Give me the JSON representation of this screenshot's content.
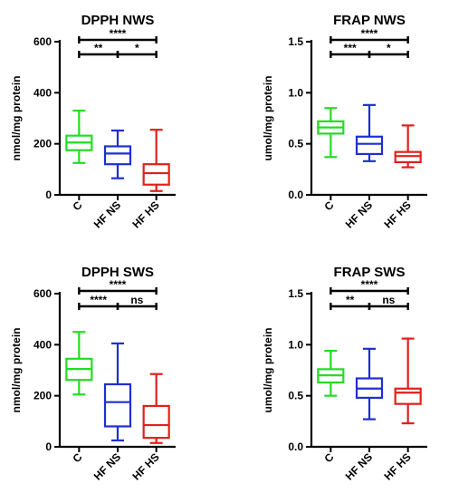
{
  "chart_data": [
    {
      "type": "boxplot",
      "title": "DPPH NWS",
      "ylabel": "nmol/mg protein",
      "ylim": [
        0,
        600
      ],
      "yticks": [
        0,
        200,
        400,
        600
      ],
      "categories": [
        "C",
        "HF NS",
        "HF HS"
      ],
      "boxes": [
        {
          "name": "C",
          "color": "#22dd22",
          "min": 125,
          "q1": 175,
          "median": 205,
          "q3": 232,
          "max": 330
        },
        {
          "name": "HF NS",
          "color": "#1f2fd0",
          "min": 65,
          "q1": 120,
          "median": 162,
          "q3": 190,
          "max": 252
        },
        {
          "name": "HF HS",
          "color": "#e0201c",
          "min": 15,
          "q1": 40,
          "median": 85,
          "q3": 120,
          "max": 255
        }
      ],
      "significance": [
        {
          "from": 0,
          "to": 2,
          "level": 0,
          "label": "****"
        },
        {
          "from": 0,
          "to": 1,
          "level": 1,
          "label": "**"
        },
        {
          "from": 1,
          "to": 2,
          "level": 1,
          "label": "*"
        }
      ]
    },
    {
      "type": "boxplot",
      "title": "FRAP NWS",
      "ylabel": "umol/mg protein",
      "ylim": [
        0,
        1.5
      ],
      "yticks": [
        "0.0",
        "0.5",
        "1.0",
        "1.5"
      ],
      "categories": [
        "C",
        "HF NS",
        "HF HS"
      ],
      "boxes": [
        {
          "name": "C",
          "color": "#22dd22",
          "min": 0.37,
          "q1": 0.6,
          "median": 0.66,
          "q3": 0.72,
          "max": 0.85
        },
        {
          "name": "HF NS",
          "color": "#1f2fd0",
          "min": 0.33,
          "q1": 0.4,
          "median": 0.5,
          "q3": 0.57,
          "max": 0.88
        },
        {
          "name": "HF HS",
          "color": "#e0201c",
          "min": 0.27,
          "q1": 0.32,
          "median": 0.38,
          "q3": 0.42,
          "max": 0.68
        }
      ],
      "significance": [
        {
          "from": 0,
          "to": 2,
          "level": 0,
          "label": "****"
        },
        {
          "from": 0,
          "to": 1,
          "level": 1,
          "label": "***"
        },
        {
          "from": 1,
          "to": 2,
          "level": 1,
          "label": "*"
        }
      ]
    },
    {
      "type": "boxplot",
      "title": "DPPH SWS",
      "ylabel": "nmol/mg protein",
      "ylim": [
        0,
        600
      ],
      "yticks": [
        0,
        200,
        400,
        600
      ],
      "categories": [
        "C",
        "HF NS",
        "HF HS"
      ],
      "boxes": [
        {
          "name": "C",
          "color": "#22dd22",
          "min": 205,
          "q1": 262,
          "median": 305,
          "q3": 345,
          "max": 450
        },
        {
          "name": "HF NS",
          "color": "#1f2fd0",
          "min": 25,
          "q1": 80,
          "median": 175,
          "q3": 245,
          "max": 405
        },
        {
          "name": "HF HS",
          "color": "#e0201c",
          "min": 15,
          "q1": 35,
          "median": 85,
          "q3": 160,
          "max": 285
        }
      ],
      "significance": [
        {
          "from": 0,
          "to": 2,
          "level": 0,
          "label": "****"
        },
        {
          "from": 0,
          "to": 1,
          "level": 1,
          "label": "****"
        },
        {
          "from": 1,
          "to": 2,
          "level": 1,
          "label": "ns"
        }
      ]
    },
    {
      "type": "boxplot",
      "title": "FRAP SWS",
      "ylabel": "umol/mg protein",
      "ylim": [
        0,
        1.5
      ],
      "yticks": [
        "0.0",
        "0.5",
        "1.0",
        "1.5"
      ],
      "categories": [
        "C",
        "HF NS",
        "HF HS"
      ],
      "boxes": [
        {
          "name": "C",
          "color": "#22dd22",
          "min": 0.5,
          "q1": 0.63,
          "median": 0.7,
          "q3": 0.76,
          "max": 0.94
        },
        {
          "name": "HF NS",
          "color": "#1f2fd0",
          "min": 0.27,
          "q1": 0.48,
          "median": 0.57,
          "q3": 0.67,
          "max": 0.96
        },
        {
          "name": "HF HS",
          "color": "#e0201c",
          "min": 0.23,
          "q1": 0.42,
          "median": 0.53,
          "q3": 0.57,
          "max": 1.06
        }
      ],
      "significance": [
        {
          "from": 0,
          "to": 2,
          "level": 0,
          "label": "****"
        },
        {
          "from": 0,
          "to": 1,
          "level": 1,
          "label": "**"
        },
        {
          "from": 1,
          "to": 2,
          "level": 1,
          "label": "ns"
        }
      ]
    }
  ]
}
